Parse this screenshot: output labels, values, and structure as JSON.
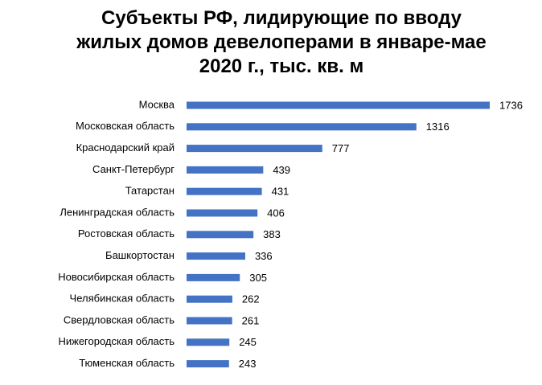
{
  "chart_data": {
    "type": "hbar",
    "title": "Субъекты РФ, лидирующие по вводу\nжилых домов девелоперами в январе-мае\n2020 г., тыс. кв. м",
    "categories": [
      "Москва",
      "Московская область",
      "Краснодарский край",
      "Санкт-Петербург",
      "Татарстан",
      "Ленинградская область",
      "Ростовская область",
      "Башкортостан",
      "Новосибирская область",
      "Челябинская область",
      "Свердловская область",
      "Нижегородская область",
      "Тюменская область"
    ],
    "values": [
      1736,
      1316,
      777,
      439,
      431,
      406,
      383,
      336,
      305,
      262,
      261,
      245,
      243
    ],
    "color": "#4472c4"
  }
}
